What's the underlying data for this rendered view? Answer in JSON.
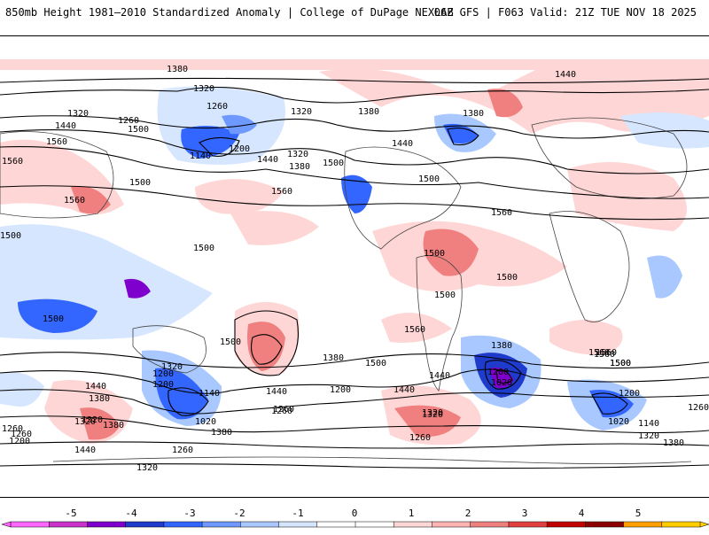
{
  "header": {
    "left_title": "850mb Height 1981–2010 Standardized Anomaly | College of DuPage NEXLAB",
    "right_title": "06Z GFS | F063 Valid: 21Z TUE NOV 18 2025"
  },
  "colorbar": {
    "ticks": [
      "-5",
      "-4",
      "-3",
      "-2",
      "-1",
      "0",
      "1",
      "2",
      "3",
      "4",
      "5"
    ],
    "colors": [
      "#ff66ff",
      "#cc33cc",
      "#7f00cc",
      "#1f3bcc",
      "#3366ff",
      "#6e99ff",
      "#a8c8ff",
      "#d6e6ff",
      "#ffffff",
      "#ffffff",
      "#ffd6d6",
      "#ffb3b3",
      "#f08080",
      "#e04040",
      "#c00000",
      "#8b0000",
      "#ffa000",
      "#ffcc00"
    ]
  },
  "contour_labels": [
    {
      "text": "1380"
    },
    {
      "text": "1320"
    },
    {
      "text": "1260"
    },
    {
      "text": "1320"
    },
    {
      "text": "1440"
    },
    {
      "text": "1560"
    },
    {
      "text": "1500"
    },
    {
      "text": "1560"
    },
    {
      "text": "1260"
    },
    {
      "text": "1140"
    },
    {
      "text": "1200"
    },
    {
      "text": "1320"
    },
    {
      "text": "1380"
    },
    {
      "text": "1440"
    },
    {
      "text": "1380"
    },
    {
      "text": "1500"
    },
    {
      "text": "1500"
    },
    {
      "text": "1560"
    },
    {
      "text": "1380"
    },
    {
      "text": "1320"
    },
    {
      "text": "1440"
    },
    {
      "text": "1500"
    },
    {
      "text": "1560"
    },
    {
      "text": "1440"
    },
    {
      "text": "1560"
    },
    {
      "text": "1500"
    },
    {
      "text": "1500"
    },
    {
      "text": "1500"
    },
    {
      "text": "1500"
    },
    {
      "text": "1500"
    },
    {
      "text": "1500"
    },
    {
      "text": "1560"
    },
    {
      "text": "1500"
    },
    {
      "text": "1560"
    },
    {
      "text": "1380"
    },
    {
      "text": "1500"
    },
    {
      "text": "1440"
    },
    {
      "text": "1440"
    },
    {
      "text": "1200"
    },
    {
      "text": "1260"
    },
    {
      "text": "1320"
    },
    {
      "text": "1320"
    },
    {
      "text": "1200"
    },
    {
      "text": "1140"
    },
    {
      "text": "1020"
    },
    {
      "text": "1440"
    },
    {
      "text": "1380"
    },
    {
      "text": "1320"
    },
    {
      "text": "1200"
    },
    {
      "text": "1260"
    },
    {
      "text": "1380"
    },
    {
      "text": "1440"
    },
    {
      "text": "1260"
    },
    {
      "text": "1320"
    },
    {
      "text": "1380"
    },
    {
      "text": "1260"
    },
    {
      "text": "1200"
    },
    {
      "text": "1260"
    },
    {
      "text": "1320"
    },
    {
      "text": "1380"
    },
    {
      "text": "1440"
    },
    {
      "text": "1500"
    },
    {
      "text": "1560"
    },
    {
      "text": "1200"
    },
    {
      "text": "1020"
    },
    {
      "text": "1140"
    },
    {
      "text": "1200"
    },
    {
      "text": "1260"
    },
    {
      "text": "1320"
    },
    {
      "text": "1380"
    },
    {
      "text": "1260"
    },
    {
      "text": "1320"
    },
    {
      "text": "1020"
    },
    {
      "text": "1500"
    },
    {
      "text": "1560"
    }
  ]
}
